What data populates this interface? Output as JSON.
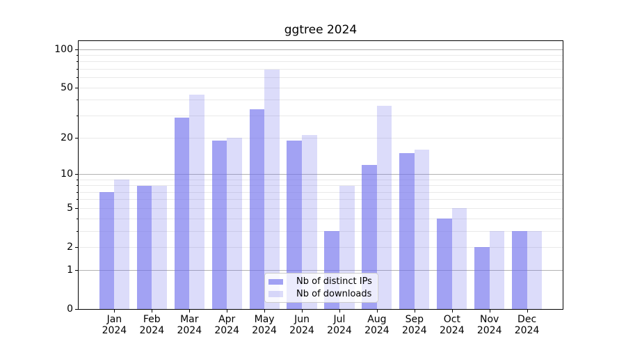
{
  "title": "ggtree 2024",
  "chart_data": {
    "type": "bar",
    "title": "ggtree 2024",
    "xlabel": "",
    "ylabel": "",
    "x_categories": [
      "Jan",
      "Feb",
      "Mar",
      "Apr",
      "May",
      "Jun",
      "Jul",
      "Aug",
      "Sep",
      "Oct",
      "Nov",
      "Dec"
    ],
    "x_year": "2024",
    "series": [
      {
        "name": "Nb of distinct IPs",
        "color": "#6c6cec",
        "alpha": 0.63,
        "values": [
          7,
          8,
          29,
          19,
          34,
          19,
          3,
          12,
          15,
          4,
          2,
          3
        ]
      },
      {
        "name": "Nb of downloads",
        "color": "#6c6cec",
        "alpha": 0.24,
        "values": [
          9,
          8,
          44,
          20,
          70,
          21,
          8,
          36,
          16,
          5,
          3,
          3
        ]
      }
    ],
    "y_scale": "log1p",
    "y_tick_labels": [
      "0",
      "1",
      "2",
      "5",
      "10",
      "20",
      "50",
      "100"
    ],
    "y_tick_values": [
      0,
      1,
      2,
      5,
      10,
      20,
      50,
      100
    ],
    "ylim": [
      0,
      115
    ],
    "grid": "on",
    "gridlines": {
      "major": [
        1,
        10,
        100
      ],
      "minor": [
        2,
        3,
        4,
        5,
        6,
        7,
        8,
        9,
        20,
        30,
        40,
        50,
        60,
        70,
        80,
        90
      ]
    },
    "legend": {
      "position": "lower-center-inside",
      "entries": [
        "Nb of distinct IPs",
        "Nb of downloads"
      ]
    },
    "colors": {
      "spine": "#000000",
      "grid_major": "#b2b2b2",
      "grid_minor": "#e9e9e9",
      "legend_border": "#cccccc",
      "tick_label": "#000000"
    }
  }
}
